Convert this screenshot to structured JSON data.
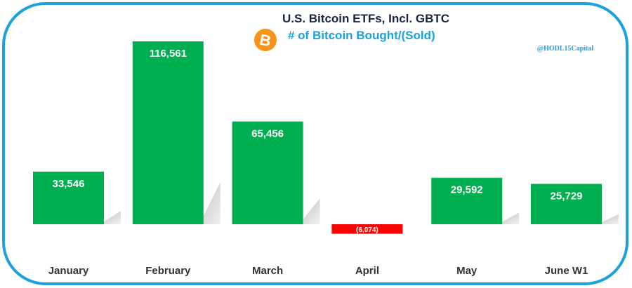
{
  "chart_data": {
    "type": "bar",
    "title": "U.S. Bitcoin ETFs, Incl. GBTC",
    "subtitle": "# of Bitcoin Bought/(Sold)",
    "watermark": "@HODL15Capital",
    "categories": [
      "January",
      "February",
      "March",
      "April",
      "May",
      "June W1"
    ],
    "values": [
      33546,
      116561,
      65456,
      -6074,
      29592,
      25729
    ],
    "data_labels": [
      "33,546",
      "116,561",
      "65,456",
      "(6,074)",
      "29,592",
      "25,729"
    ],
    "xlabel": "",
    "ylabel": "",
    "grid": false,
    "colors": {
      "positive": "#00b050",
      "negative": "#ff0000",
      "border": "#1ca0e0",
      "title": "#1a2440",
      "subtitle": "#1ca0e0",
      "bitcoin": "#f7931a"
    },
    "icons": [
      "bitcoin-logo-icon"
    ]
  }
}
